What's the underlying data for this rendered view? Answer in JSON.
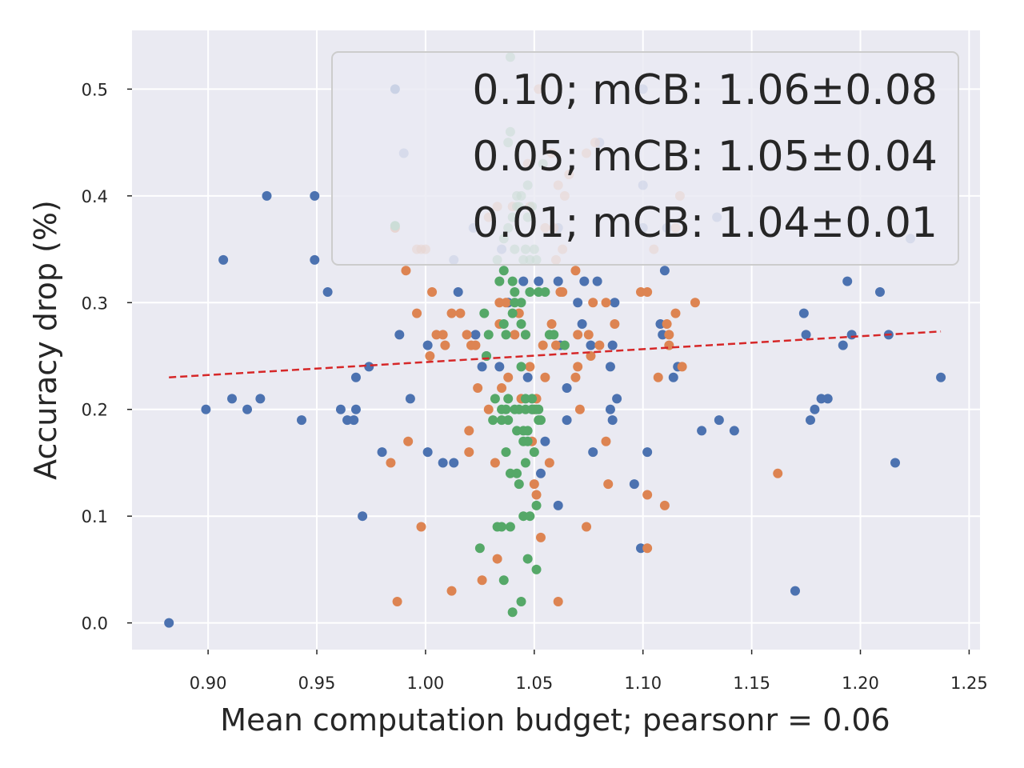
{
  "chart_data": {
    "type": "scatter",
    "title": "",
    "xlabel": "Mean computation budget; pearsonr = 0.06",
    "ylabel": "Accuracy drop (%)",
    "xlim": [
      0.865,
      1.255
    ],
    "ylim": [
      -0.025,
      0.555
    ],
    "x_ticks": [
      0.9,
      0.95,
      1.0,
      1.05,
      1.1,
      1.15,
      1.2,
      1.25
    ],
    "x_tick_labels": [
      "0.90",
      "0.95",
      "1.00",
      "1.05",
      "1.10",
      "1.15",
      "1.20",
      "1.25"
    ],
    "y_ticks": [
      0.0,
      0.1,
      0.2,
      0.3,
      0.4,
      0.5
    ],
    "y_tick_labels": [
      "0.0",
      "0.1",
      "0.2",
      "0.3",
      "0.4",
      "0.5"
    ],
    "grid": true,
    "legend_position": "top-right",
    "legend": [
      "0.10; mCB: 1.06±0.08",
      "0.05; mCB: 1.05±0.04",
      "0.01; mCB: 1.04±0.01"
    ],
    "trendline": {
      "x": [
        0.882,
        1.237
      ],
      "y": [
        0.23,
        0.273
      ],
      "color": "#d62728",
      "style": "dashed"
    },
    "series": [
      {
        "name": "0.10",
        "color": "#4c72b0",
        "points": [
          [
            0.882,
            0.0
          ],
          [
            0.899,
            0.2
          ],
          [
            0.907,
            0.34
          ],
          [
            0.911,
            0.21
          ],
          [
            0.918,
            0.2
          ],
          [
            0.924,
            0.21
          ],
          [
            0.927,
            0.4
          ],
          [
            0.943,
            0.19
          ],
          [
            0.949,
            0.4
          ],
          [
            0.949,
            0.34
          ],
          [
            0.955,
            0.31
          ],
          [
            0.961,
            0.2
          ],
          [
            0.964,
            0.19
          ],
          [
            0.967,
            0.19
          ],
          [
            0.968,
            0.23
          ],
          [
            0.968,
            0.2
          ],
          [
            0.971,
            0.1
          ],
          [
            0.974,
            0.24
          ],
          [
            0.98,
            0.16
          ],
          [
            0.986,
            0.5
          ],
          [
            0.988,
            0.27
          ],
          [
            0.993,
            0.21
          ],
          [
            1.001,
            0.26
          ],
          [
            1.001,
            0.16
          ],
          [
            1.008,
            0.15
          ],
          [
            1.013,
            0.15
          ],
          [
            1.015,
            0.31
          ],
          [
            1.023,
            0.27
          ],
          [
            1.026,
            0.24
          ],
          [
            1.028,
            0.25
          ],
          [
            1.034,
            0.24
          ],
          [
            1.038,
            0.3
          ],
          [
            1.045,
            0.32
          ],
          [
            1.047,
            0.23
          ],
          [
            1.049,
            0.2
          ],
          [
            1.052,
            0.32
          ],
          [
            1.053,
            0.14
          ],
          [
            1.055,
            0.17
          ],
          [
            1.061,
            0.32
          ],
          [
            1.061,
            0.11
          ],
          [
            1.062,
            0.26
          ],
          [
            1.065,
            0.22
          ],
          [
            1.065,
            0.19
          ],
          [
            1.07,
            0.3
          ],
          [
            1.072,
            0.28
          ],
          [
            1.073,
            0.32
          ],
          [
            1.076,
            0.26
          ],
          [
            1.077,
            0.16
          ],
          [
            1.079,
            0.32
          ],
          [
            1.085,
            0.24
          ],
          [
            1.085,
            0.2
          ],
          [
            1.086,
            0.19
          ],
          [
            1.086,
            0.26
          ],
          [
            1.087,
            0.3
          ],
          [
            1.088,
            0.21
          ],
          [
            1.096,
            0.13
          ],
          [
            1.099,
            0.07
          ],
          [
            1.102,
            0.16
          ],
          [
            1.108,
            0.28
          ],
          [
            1.109,
            0.27
          ],
          [
            1.11,
            0.33
          ],
          [
            1.114,
            0.23
          ],
          [
            1.116,
            0.24
          ],
          [
            1.127,
            0.18
          ],
          [
            1.135,
            0.19
          ],
          [
            1.142,
            0.18
          ],
          [
            1.17,
            0.03
          ],
          [
            1.174,
            0.29
          ],
          [
            1.175,
            0.27
          ],
          [
            1.177,
            0.19
          ],
          [
            1.179,
            0.2
          ],
          [
            1.182,
            0.21
          ],
          [
            1.185,
            0.21
          ],
          [
            1.192,
            0.26
          ],
          [
            1.194,
            0.32
          ],
          [
            1.196,
            0.27
          ],
          [
            1.209,
            0.31
          ],
          [
            1.213,
            0.27
          ],
          [
            1.216,
            0.15
          ],
          [
            1.237,
            0.23
          ]
        ]
      },
      {
        "name": "0.05",
        "color": "#dd8452",
        "points": [
          [
            0.984,
            0.15
          ],
          [
            0.986,
            0.37
          ],
          [
            0.987,
            0.02
          ],
          [
            0.991,
            0.33
          ],
          [
            0.992,
            0.17
          ],
          [
            0.996,
            0.29
          ],
          [
            0.998,
            0.09
          ],
          [
            1.002,
            0.25
          ],
          [
            1.003,
            0.31
          ],
          [
            1.005,
            0.27
          ],
          [
            1.008,
            0.27
          ],
          [
            1.009,
            0.26
          ],
          [
            1.012,
            0.03
          ],
          [
            1.012,
            0.29
          ],
          [
            1.016,
            0.29
          ],
          [
            1.019,
            0.27
          ],
          [
            1.02,
            0.18
          ],
          [
            1.02,
            0.16
          ],
          [
            1.021,
            0.26
          ],
          [
            1.023,
            0.26
          ],
          [
            1.024,
            0.22
          ],
          [
            1.026,
            0.04
          ],
          [
            1.029,
            0.2
          ],
          [
            1.032,
            0.15
          ],
          [
            1.033,
            0.06
          ],
          [
            1.034,
            0.28
          ],
          [
            1.034,
            0.3
          ],
          [
            1.035,
            0.22
          ],
          [
            1.037,
            0.3
          ],
          [
            1.038,
            0.23
          ],
          [
            1.041,
            0.27
          ],
          [
            1.043,
            0.29
          ],
          [
            1.044,
            0.21
          ],
          [
            1.046,
            0.27
          ],
          [
            1.048,
            0.24
          ],
          [
            1.049,
            0.17
          ],
          [
            1.05,
            0.13
          ],
          [
            1.05,
            0.2
          ],
          [
            1.051,
            0.12
          ],
          [
            1.051,
            0.21
          ],
          [
            1.053,
            0.08
          ],
          [
            1.054,
            0.26
          ],
          [
            1.055,
            0.23
          ],
          [
            1.057,
            0.15
          ],
          [
            1.058,
            0.28
          ],
          [
            1.06,
            0.26
          ],
          [
            1.061,
            0.02
          ],
          [
            1.062,
            0.31
          ],
          [
            1.063,
            0.31
          ],
          [
            1.069,
            0.33
          ],
          [
            1.069,
            0.23
          ],
          [
            1.07,
            0.24
          ],
          [
            1.07,
            0.27
          ],
          [
            1.071,
            0.2
          ],
          [
            1.074,
            0.09
          ],
          [
            1.075,
            0.27
          ],
          [
            1.076,
            0.25
          ],
          [
            1.077,
            0.3
          ],
          [
            1.08,
            0.26
          ],
          [
            1.083,
            0.17
          ],
          [
            1.083,
            0.3
          ],
          [
            1.084,
            0.13
          ],
          [
            1.087,
            0.28
          ],
          [
            1.099,
            0.31
          ],
          [
            1.102,
            0.31
          ],
          [
            1.102,
            0.12
          ],
          [
            1.102,
            0.07
          ],
          [
            1.107,
            0.23
          ],
          [
            1.11,
            0.11
          ],
          [
            1.111,
            0.28
          ],
          [
            1.112,
            0.26
          ],
          [
            1.112,
            0.27
          ],
          [
            1.115,
            0.29
          ],
          [
            1.118,
            0.24
          ],
          [
            1.124,
            0.3
          ],
          [
            1.162,
            0.14
          ]
        ]
      },
      {
        "name": "0.01",
        "color": "#55a868",
        "points": [
          [
            0.986,
            0.372
          ],
          [
            1.025,
            0.07
          ],
          [
            1.027,
            0.29
          ],
          [
            1.028,
            0.25
          ],
          [
            1.029,
            0.27
          ],
          [
            1.031,
            0.19
          ],
          [
            1.032,
            0.21
          ],
          [
            1.033,
            0.09
          ],
          [
            1.034,
            0.32
          ],
          [
            1.035,
            0.2
          ],
          [
            1.035,
            0.19
          ],
          [
            1.035,
            0.09
          ],
          [
            1.036,
            0.33
          ],
          [
            1.036,
            0.04
          ],
          [
            1.036,
            0.28
          ],
          [
            1.037,
            0.2
          ],
          [
            1.037,
            0.27
          ],
          [
            1.037,
            0.16
          ],
          [
            1.038,
            0.21
          ],
          [
            1.038,
            0.19
          ],
          [
            1.039,
            0.14
          ],
          [
            1.039,
            0.09
          ],
          [
            1.04,
            0.29
          ],
          [
            1.04,
            0.01
          ],
          [
            1.04,
            0.32
          ],
          [
            1.041,
            0.3
          ],
          [
            1.041,
            0.31
          ],
          [
            1.041,
            0.2
          ],
          [
            1.042,
            0.18
          ],
          [
            1.042,
            0.14
          ],
          [
            1.043,
            0.13
          ],
          [
            1.043,
            0.2
          ],
          [
            1.044,
            0.3
          ],
          [
            1.044,
            0.28
          ],
          [
            1.044,
            0.24
          ],
          [
            1.044,
            0.02
          ],
          [
            1.045,
            0.17
          ],
          [
            1.045,
            0.18
          ],
          [
            1.045,
            0.1
          ],
          [
            1.046,
            0.27
          ],
          [
            1.046,
            0.21
          ],
          [
            1.046,
            0.2
          ],
          [
            1.046,
            0.15
          ],
          [
            1.047,
            0.18
          ],
          [
            1.047,
            0.06
          ],
          [
            1.047,
            0.17
          ],
          [
            1.048,
            0.31
          ],
          [
            1.048,
            0.1
          ],
          [
            1.049,
            0.2
          ],
          [
            1.049,
            0.21
          ],
          [
            1.05,
            0.16
          ],
          [
            1.05,
            0.2
          ],
          [
            1.051,
            0.2
          ],
          [
            1.051,
            0.05
          ],
          [
            1.051,
            0.11
          ],
          [
            1.052,
            0.31
          ],
          [
            1.052,
            0.19
          ],
          [
            1.052,
            0.2
          ],
          [
            1.053,
            0.19
          ],
          [
            1.055,
            0.31
          ],
          [
            1.057,
            0.27
          ],
          [
            1.059,
            0.27
          ],
          [
            1.064,
            0.26
          ]
        ]
      },
      {
        "name": "0.10 (faded, behind legend)",
        "color": "#4c72b0",
        "opacity": 0.6,
        "points": [
          [
            0.99,
            0.44
          ],
          [
            1.013,
            0.34
          ],
          [
            1.022,
            0.37
          ],
          [
            1.035,
            0.35
          ],
          [
            1.061,
            0.37
          ],
          [
            1.08,
            0.45
          ],
          [
            1.1,
            0.5
          ],
          [
            1.1,
            0.41
          ],
          [
            1.1,
            0.37
          ],
          [
            1.111,
            0.37
          ],
          [
            1.134,
            0.38
          ],
          [
            1.223,
            0.36
          ]
        ]
      },
      {
        "name": "0.05 (faded, behind legend)",
        "color": "#dd8452",
        "opacity": 0.6,
        "points": [
          [
            0.996,
            0.35
          ],
          [
            0.998,
            0.35
          ],
          [
            1.0,
            0.35
          ],
          [
            1.029,
            0.38
          ],
          [
            1.033,
            0.39
          ],
          [
            1.04,
            0.39
          ],
          [
            1.047,
            0.43
          ],
          [
            1.048,
            0.39
          ],
          [
            1.052,
            0.5
          ],
          [
            1.055,
            0.37
          ],
          [
            1.058,
            0.44
          ],
          [
            1.059,
            0.37
          ],
          [
            1.06,
            0.34
          ],
          [
            1.061,
            0.41
          ],
          [
            1.063,
            0.35
          ],
          [
            1.064,
            0.4
          ],
          [
            1.066,
            0.42
          ],
          [
            1.074,
            0.44
          ],
          [
            1.078,
            0.45
          ],
          [
            1.105,
            0.35
          ],
          [
            1.115,
            0.37
          ],
          [
            1.117,
            0.4
          ]
        ]
      },
      {
        "name": "0.01 (faded, behind legend)",
        "color": "#55a868",
        "opacity": 0.6,
        "points": [
          [
            1.033,
            0.34
          ],
          [
            1.036,
            0.36
          ],
          [
            1.038,
            0.37
          ],
          [
            1.038,
            0.45
          ],
          [
            1.039,
            0.53
          ],
          [
            1.039,
            0.46
          ],
          [
            1.04,
            0.38
          ],
          [
            1.041,
            0.35
          ],
          [
            1.042,
            0.39
          ],
          [
            1.042,
            0.4
          ],
          [
            1.043,
            0.39
          ],
          [
            1.044,
            0.4
          ],
          [
            1.045,
            0.34
          ],
          [
            1.046,
            0.35
          ],
          [
            1.047,
            0.38
          ],
          [
            1.047,
            0.41
          ],
          [
            1.048,
            0.34
          ],
          [
            1.049,
            0.39
          ],
          [
            1.05,
            0.35
          ],
          [
            1.051,
            0.34
          ],
          [
            1.054,
            0.43
          ]
        ]
      }
    ]
  }
}
